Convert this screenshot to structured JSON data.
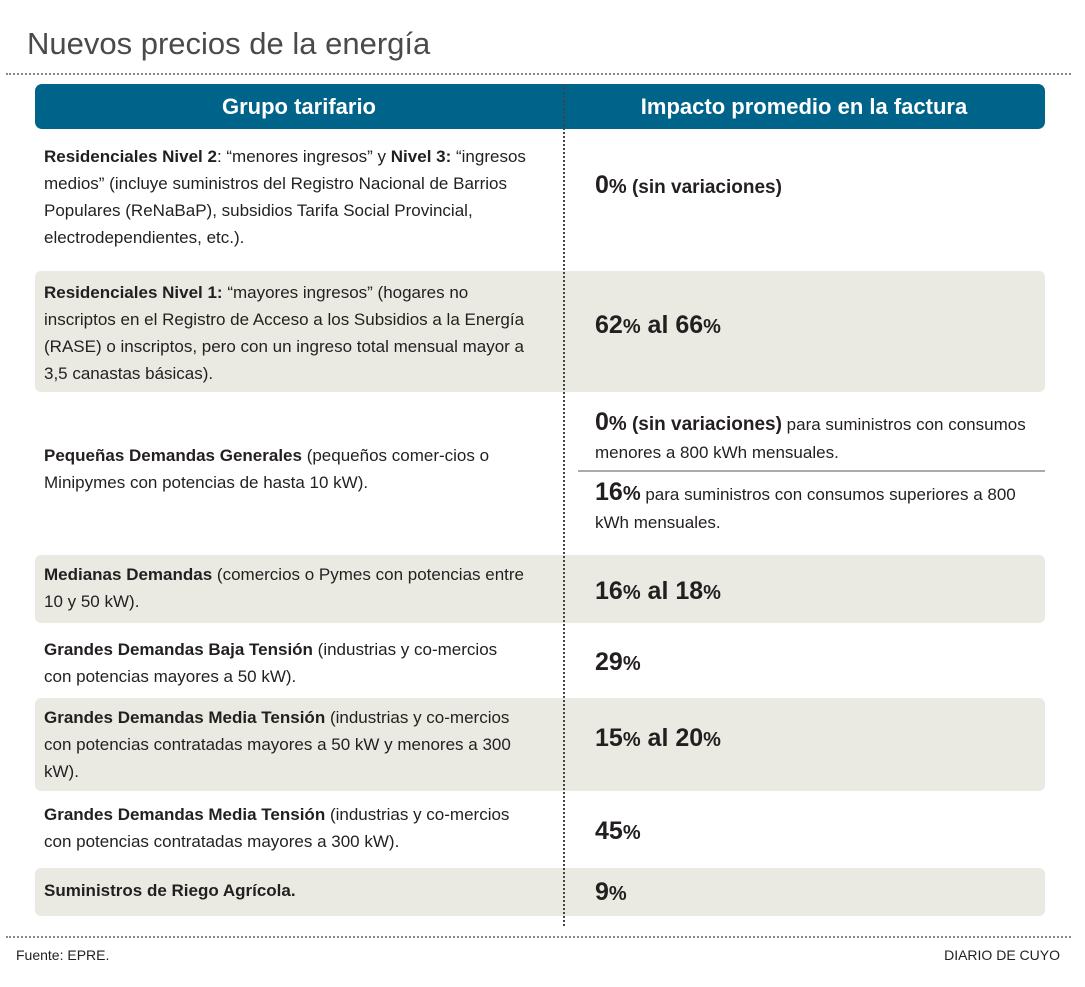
{
  "title": "Nuevos precios de la energía",
  "header": {
    "col1": "Grupo tarifario",
    "col2": "Impacto promedio en la factura"
  },
  "rows": [
    {
      "left": [
        {
          "t": "Residenciales Nivel 2",
          "c": "b"
        },
        {
          "t": ": “menores ingresos” y "
        },
        {
          "t": "Nivel 3:",
          "c": "b"
        },
        {
          "t": " “ingresos medios” (incluye suministros del Registro Nacional de Barrios Populares (ReNaBaP), subsidios Tarifa Social Provincial, electrodependientes, etc.)."
        }
      ],
      "right": [
        {
          "t": "0",
          "c": "big"
        },
        {
          "t": "%",
          "c": "pct"
        },
        {
          "t": " (sin variaciones)",
          "c": "bmed"
        }
      ]
    },
    {
      "left": [
        {
          "t": "Residenciales Nivel 1:",
          "c": "b"
        },
        {
          "t": " “mayores ingresos” (hogares no inscriptos en el Registro de Acceso a los Subsidios a la Energía (RASE) o inscriptos, pero con un ingreso total mensual mayor a 3,5 canastas básicas)."
        }
      ],
      "right": [
        {
          "t": "62",
          "c": "big"
        },
        {
          "t": "%",
          "c": "pct"
        },
        {
          "t": " al 66",
          "c": "big"
        },
        {
          "t": "%",
          "c": "pct"
        }
      ]
    },
    {
      "left": [
        {
          "t": "Pequeñas Demandas Generales",
          "c": "b"
        },
        {
          "t": " (pequeños comer-cios o Minipymes con potencias de hasta 10 kW)."
        }
      ],
      "right": [
        {
          "t": "0",
          "c": "big"
        },
        {
          "t": "%",
          "c": "pct"
        },
        {
          "t": " (sin variaciones)",
          "c": "bmed"
        },
        {
          "t": " para suministros con consumos menores a 800 kWh mensuales."
        }
      ],
      "right2": [
        {
          "t": "16",
          "c": "big"
        },
        {
          "t": "%",
          "c": "pct"
        },
        {
          "t": " para suministros con consumos superiores a 800 kWh mensuales."
        }
      ]
    },
    {
      "left": [
        {
          "t": "Medianas Demandas",
          "c": "b"
        },
        {
          "t": " (comercios o Pymes con potencias entre 10 y 50 kW)."
        }
      ],
      "right": [
        {
          "t": "16",
          "c": "big"
        },
        {
          "t": "%",
          "c": "pct"
        },
        {
          "t": " al 18",
          "c": "big"
        },
        {
          "t": "%",
          "c": "pct"
        }
      ]
    },
    {
      "left": [
        {
          "t": "Grandes Demandas Baja Tensión",
          "c": "b"
        },
        {
          "t": " (industrias y co-mercios con potencias mayores a 50 kW)."
        }
      ],
      "right": [
        {
          "t": "29",
          "c": "big"
        },
        {
          "t": "%",
          "c": "pct"
        }
      ]
    },
    {
      "left": [
        {
          "t": "Grandes Demandas Media Tensión",
          "c": "b"
        },
        {
          "t": " (industrias y co-mercios con potencias contratadas mayores a 50 kW y menores a 300 kW)."
        }
      ],
      "right": [
        {
          "t": "15",
          "c": "big"
        },
        {
          "t": "%",
          "c": "pct"
        },
        {
          "t": " al 20",
          "c": "big"
        },
        {
          "t": "%",
          "c": "pct"
        }
      ]
    },
    {
      "left": [
        {
          "t": "Grandes Demandas Media Tensión",
          "c": "b"
        },
        {
          "t": " (industrias y co-mercios con potencias contratadas mayores a 300 kW)."
        }
      ],
      "right": [
        {
          "t": "45",
          "c": "big"
        },
        {
          "t": "%",
          "c": "pct"
        }
      ]
    },
    {
      "left": [
        {
          "t": "Suministros de Riego Agrícola.",
          "c": "b"
        }
      ],
      "right": [
        {
          "t": "9",
          "c": "big"
        },
        {
          "t": "%",
          "c": "pct"
        }
      ]
    }
  ],
  "footer": {
    "source": "Fuente: EPRE.",
    "brand": "DIARIO DE CUYO"
  },
  "colors": {
    "header": "#00648a",
    "shade": "#ebeae2"
  }
}
